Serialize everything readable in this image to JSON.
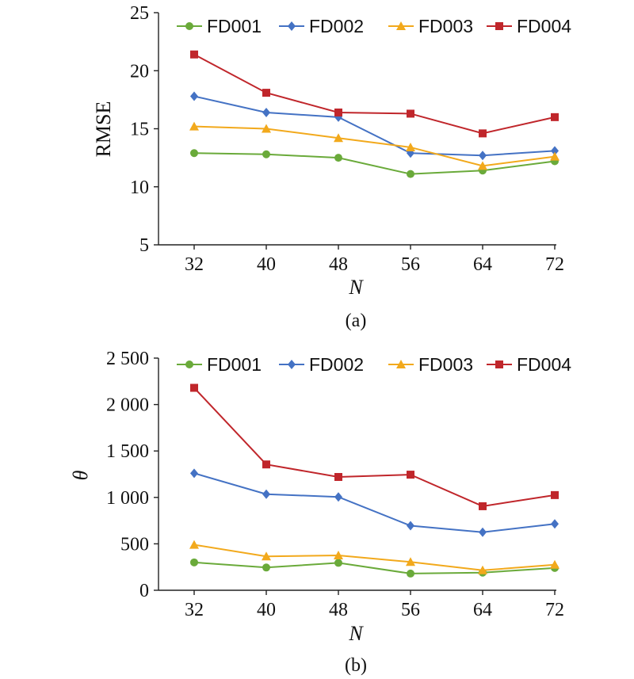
{
  "chart_data": [
    {
      "type": "line",
      "panel_label": "(a)",
      "xlabel": "N",
      "ylabel": "RMSE",
      "categories": [
        "32",
        "40",
        "48",
        "56",
        "64",
        "72"
      ],
      "ylim": [
        5,
        25
      ],
      "yticks": [
        5,
        10,
        15,
        20,
        25
      ],
      "ytick_labels": [
        "5",
        "10",
        "15",
        "20",
        "25"
      ],
      "legend_position": "top",
      "grid": false,
      "series": [
        {
          "name": "FD001",
          "color": "#6aaa3a",
          "marker": "circle",
          "values": [
            12.9,
            12.8,
            12.5,
            11.1,
            11.4,
            12.2
          ]
        },
        {
          "name": "FD002",
          "color": "#4472c4",
          "marker": "diamond",
          "values": [
            17.8,
            16.4,
            16.0,
            12.9,
            12.7,
            13.1
          ]
        },
        {
          "name": "FD003",
          "color": "#f2a91c",
          "marker": "triangle",
          "values": [
            15.2,
            15.0,
            14.2,
            13.4,
            11.8,
            12.6
          ]
        },
        {
          "name": "FD004",
          "color": "#c0262b",
          "marker": "square",
          "values": [
            21.4,
            18.1,
            16.4,
            16.3,
            14.6,
            16.0
          ]
        }
      ]
    },
    {
      "type": "line",
      "panel_label": "(b)",
      "xlabel": "N",
      "ylabel": "θ",
      "categories": [
        "32",
        "40",
        "48",
        "56",
        "64",
        "72"
      ],
      "ylim": [
        0,
        2500
      ],
      "yticks": [
        0,
        500,
        1000,
        1500,
        2000,
        2500
      ],
      "ytick_labels": [
        "0",
        "500",
        "1 000",
        "1 500",
        "2 000",
        "2 500"
      ],
      "legend_position": "top",
      "grid": false,
      "series": [
        {
          "name": "FD001",
          "color": "#6aaa3a",
          "marker": "circle",
          "values": [
            300,
            245,
            295,
            180,
            190,
            240
          ]
        },
        {
          "name": "FD002",
          "color": "#4472c4",
          "marker": "diamond",
          "values": [
            1260,
            1035,
            1005,
            695,
            625,
            715
          ]
        },
        {
          "name": "FD003",
          "color": "#f2a91c",
          "marker": "triangle",
          "values": [
            490,
            365,
            375,
            305,
            215,
            275
          ]
        },
        {
          "name": "FD004",
          "color": "#c0262b",
          "marker": "square",
          "values": [
            2180,
            1355,
            1220,
            1245,
            905,
            1025
          ]
        }
      ]
    }
  ]
}
